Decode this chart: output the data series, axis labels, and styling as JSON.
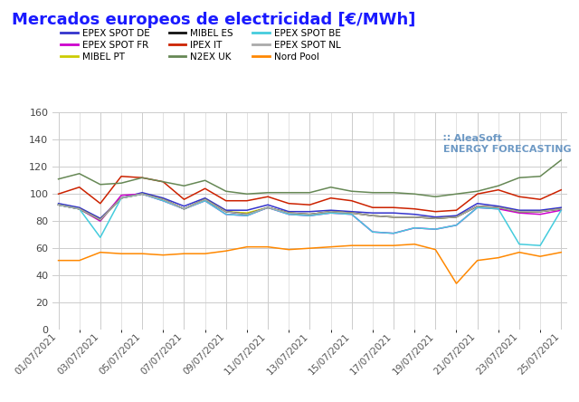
{
  "title": "Mercados europeos de electricidad [€/MWh]",
  "title_color": "#1a1aff",
  "background_color": "#ffffff",
  "grid_color": "#cccccc",
  "ylim": [
    0,
    160
  ],
  "yticks": [
    0,
    20,
    40,
    60,
    80,
    100,
    120,
    140,
    160
  ],
  "x_labels": [
    "01/07/2021",
    "03/07/2021",
    "05/07/2021",
    "07/07/2021",
    "09/07/2021",
    "11/07/2021",
    "13/07/2021",
    "15/07/2021",
    "17/07/2021",
    "19/07/2021",
    "21/07/2021",
    "23/07/2021",
    "25/07/2021"
  ],
  "series": {
    "EPEX SPOT DE": {
      "color": "#3333cc",
      "values": [
        93,
        90,
        82,
        97,
        101,
        97,
        91,
        97,
        88,
        88,
        92,
        87,
        87,
        88,
        87,
        86,
        86,
        85,
        83,
        84,
        93,
        91,
        88,
        88,
        90
      ]
    },
    "EPEX SPOT FR": {
      "color": "#cc00cc",
      "values": [
        92,
        89,
        80,
        99,
        100,
        95,
        89,
        95,
        85,
        84,
        90,
        85,
        84,
        86,
        85,
        72,
        71,
        75,
        74,
        77,
        90,
        89,
        86,
        85,
        88
      ]
    },
    "MIBEL PT": {
      "color": "#cccc00",
      "values": [
        92,
        89,
        81,
        97,
        100,
        96,
        89,
        96,
        87,
        86,
        90,
        86,
        85,
        87,
        86,
        84,
        83,
        83,
        82,
        83,
        91,
        90,
        87,
        87,
        89
      ]
    },
    "MIBEL ES": {
      "color": "#111111",
      "values": [
        92,
        89,
        81,
        97,
        100,
        96,
        89,
        96,
        87,
        85,
        90,
        86,
        85,
        87,
        86,
        84,
        83,
        83,
        82,
        83,
        91,
        90,
        87,
        87,
        89
      ]
    },
    "IPEX IT": {
      "color": "#cc2200",
      "values": [
        100,
        105,
        93,
        113,
        112,
        109,
        96,
        104,
        95,
        95,
        98,
        93,
        92,
        97,
        95,
        90,
        90,
        89,
        87,
        88,
        100,
        103,
        98,
        96,
        103
      ]
    },
    "N2EX UK": {
      "color": "#668855",
      "values": [
        111,
        115,
        107,
        108,
        112,
        109,
        106,
        110,
        102,
        100,
        101,
        101,
        101,
        105,
        102,
        101,
        101,
        100,
        98,
        100,
        102,
        106,
        112,
        113,
        125
      ]
    },
    "EPEX SPOT BE": {
      "color": "#44ccdd",
      "values": [
        92,
        89,
        68,
        97,
        100,
        95,
        89,
        95,
        85,
        84,
        90,
        85,
        84,
        86,
        85,
        72,
        71,
        75,
        74,
        77,
        90,
        89,
        63,
        62,
        88
      ]
    },
    "EPEX SPOT NL": {
      "color": "#aaaaaa",
      "values": [
        92,
        89,
        81,
        97,
        100,
        96,
        89,
        96,
        87,
        85,
        90,
        86,
        85,
        87,
        86,
        84,
        83,
        83,
        82,
        83,
        91,
        90,
        87,
        87,
        89
      ]
    },
    "Nord Pool": {
      "color": "#ff8800",
      "values": [
        51,
        51,
        57,
        56,
        56,
        55,
        56,
        56,
        58,
        61,
        61,
        59,
        60,
        61,
        62,
        62,
        62,
        63,
        59,
        34,
        51,
        53,
        57,
        54,
        57
      ]
    }
  },
  "legend_order": [
    "EPEX SPOT DE",
    "EPEX SPOT FR",
    "MIBEL PT",
    "MIBEL ES",
    "IPEX IT",
    "N2EX UK",
    "EPEX SPOT BE",
    "EPEX SPOT NL",
    "Nord Pool"
  ],
  "figsize": [
    6.4,
    4.44
  ],
  "dpi": 100
}
